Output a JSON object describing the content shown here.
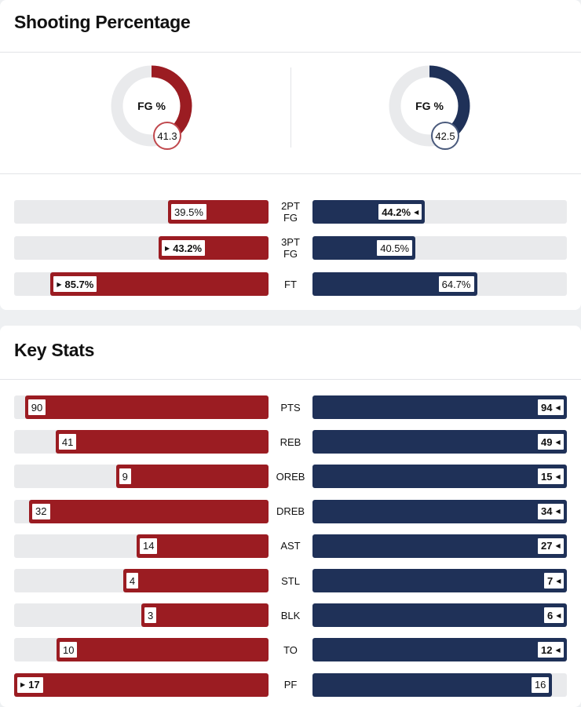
{
  "colors": {
    "team_a": "#9b1c22",
    "team_b": "#1f3158",
    "track": "#e9eaec"
  },
  "shooting": {
    "title": "Shooting Percentage",
    "donuts": [
      {
        "team": "team_a",
        "label": "FG %",
        "value": 41.3,
        "display": "41.3"
      },
      {
        "team": "team_b",
        "label": "FG %",
        "value": 42.5,
        "display": "42.5"
      }
    ]
  },
  "chart_data": [
    {
      "type": "bar",
      "title": "Shooting Percentage",
      "categories": [
        "2PT FG",
        "3PT FG",
        "FT"
      ],
      "series": [
        {
          "name": "team_a",
          "values": [
            39.5,
            43.2,
            85.7
          ],
          "labels": [
            "39.5%",
            "43.2%",
            "85.7%"
          ]
        },
        {
          "name": "team_b",
          "values": [
            44.2,
            40.5,
            64.7
          ],
          "labels": [
            "44.2%",
            "40.5%",
            "64.7%"
          ]
        }
      ],
      "leader": [
        "b",
        "a",
        "a"
      ],
      "max": [
        100,
        100,
        100
      ]
    },
    {
      "type": "bar",
      "title": "Key Stats",
      "categories": [
        "PTS",
        "REB",
        "OREB",
        "DREB",
        "AST",
        "STL",
        "BLK",
        "TO",
        "PF"
      ],
      "series": [
        {
          "name": "team_a",
          "values": [
            90,
            41,
            9,
            32,
            14,
            4,
            3,
            10,
            17
          ],
          "labels": [
            "90",
            "41",
            "9",
            "32",
            "14",
            "4",
            "3",
            "10",
            "17"
          ]
        },
        {
          "name": "team_b",
          "values": [
            94,
            49,
            15,
            34,
            27,
            7,
            6,
            12,
            16
          ],
          "labels": [
            "94",
            "49",
            "15",
            "34",
            "27",
            "7",
            "6",
            "12",
            "16"
          ]
        }
      ],
      "leader": [
        "b",
        "b",
        "b",
        "b",
        "b",
        "b",
        "b",
        "b",
        "a"
      ],
      "max": [
        94,
        49,
        15,
        34,
        27,
        7,
        6,
        12,
        17
      ]
    }
  ],
  "key_stats": {
    "title": "Key Stats"
  }
}
